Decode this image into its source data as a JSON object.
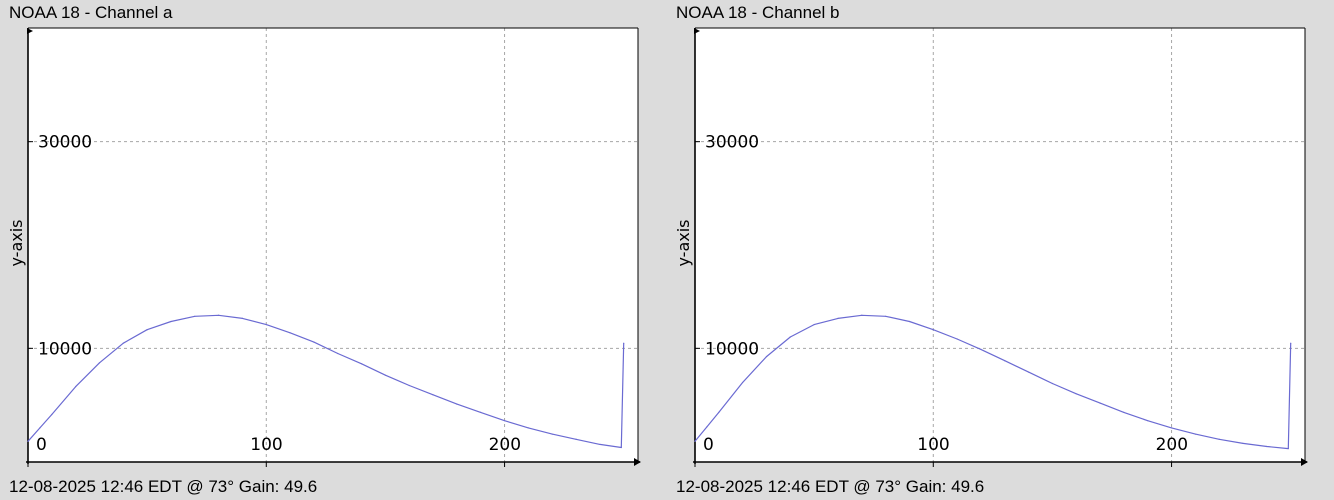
{
  "colors": {
    "background": "#dcdcdc",
    "plot_bg": "#ffffff",
    "line": "#6a6ad2",
    "grid": "#a6a6a6"
  },
  "chart_data": [
    {
      "type": "line",
      "title": "NOAA 18 - Channel a",
      "footer": "12-08-2025 12:46 EDT @ 73° Gain: 49.6",
      "xlabel": "",
      "ylabel": "y-axis",
      "xlim": [
        0,
        256
      ],
      "ylim": [
        -1000,
        41000
      ],
      "xticks": [
        0,
        100,
        200
      ],
      "yticks": [
        10000,
        30000
      ],
      "grid": true,
      "series": [
        {
          "x": [
            0,
            5,
            10,
            20,
            30,
            40,
            50,
            60,
            70,
            80,
            90,
            100,
            110,
            120,
            130,
            140,
            150,
            160,
            170,
            180,
            190,
            200,
            210,
            220,
            230,
            240,
            249,
            250
          ],
          "y": [
            1000,
            2300,
            3600,
            6300,
            8600,
            10500,
            11800,
            12600,
            13100,
            13200,
            12900,
            12300,
            11500,
            10600,
            9500,
            8500,
            7400,
            6400,
            5500,
            4600,
            3800,
            3000,
            2300,
            1700,
            1200,
            700,
            400,
            10500
          ]
        }
      ]
    },
    {
      "type": "line",
      "title": "NOAA 18 - Channel b",
      "footer": "12-08-2025 12:46 EDT @ 73° Gain: 49.6",
      "xlabel": "",
      "ylabel": "y-axis",
      "xlim": [
        0,
        256
      ],
      "ylim": [
        -1000,
        41000
      ],
      "xticks": [
        0,
        100,
        200
      ],
      "yticks": [
        10000,
        30000
      ],
      "grid": true,
      "series": [
        {
          "x": [
            0,
            5,
            10,
            20,
            30,
            40,
            50,
            60,
            70,
            80,
            90,
            100,
            110,
            120,
            130,
            140,
            150,
            160,
            170,
            180,
            190,
            200,
            210,
            220,
            230,
            240,
            249,
            250
          ],
          "y": [
            1000,
            2400,
            3800,
            6700,
            9200,
            11100,
            12300,
            12900,
            13200,
            13100,
            12600,
            11800,
            10900,
            9900,
            8800,
            7700,
            6600,
            5600,
            4700,
            3800,
            3000,
            2300,
            1700,
            1200,
            800,
            500,
            300,
            10500
          ]
        }
      ]
    }
  ]
}
